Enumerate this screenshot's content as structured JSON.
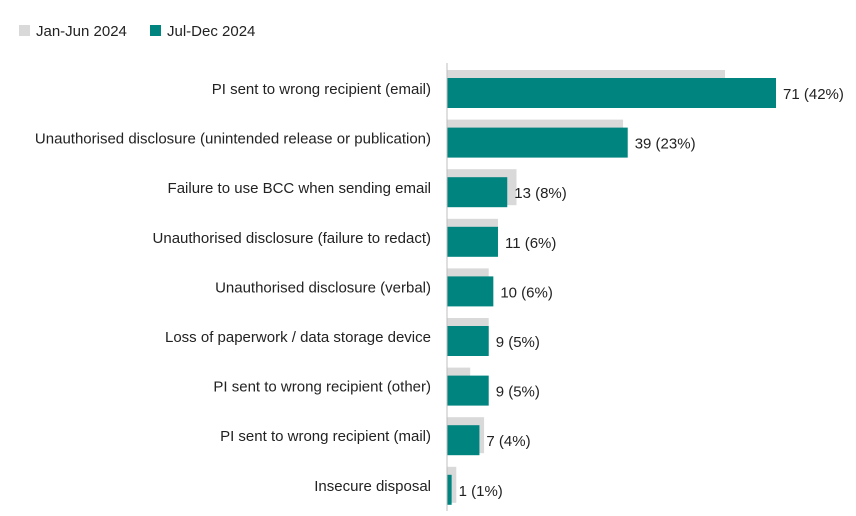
{
  "chart_data": {
    "type": "bar",
    "orientation": "horizontal",
    "categories": [
      "PI sent to wrong recipient (email)",
      "Unauthorised disclosure (unintended release or publication)",
      "Failure to use BCC when sending email",
      "Unauthorised disclosure (failure to redact)",
      "Unauthorised disclosure (verbal)",
      "Loss of paperwork / data storage device",
      "PI sent to wrong recipient (other)",
      "PI sent to wrong recipient (mail)",
      "Insecure disposal"
    ],
    "series": [
      {
        "name": "Jan-Jun 2024",
        "color": "#d9d9d9",
        "values": [
          60,
          38,
          15,
          11,
          9,
          9,
          5,
          8,
          2
        ]
      },
      {
        "name": "Jul-Dec 2024",
        "color": "#00847f",
        "values": [
          71,
          39,
          13,
          11,
          10,
          9,
          9,
          7,
          1
        ],
        "labels": [
          "71 (42%)",
          "39 (23%)",
          "13 (8%)",
          "11 (6%)",
          "10 (6%)",
          "9 (5%)",
          "9 (5%)",
          "7 (4%)",
          "1 (1%)"
        ]
      }
    ],
    "xlim": [
      0,
      71
    ],
    "legend_position": "top-left",
    "grid": false
  }
}
